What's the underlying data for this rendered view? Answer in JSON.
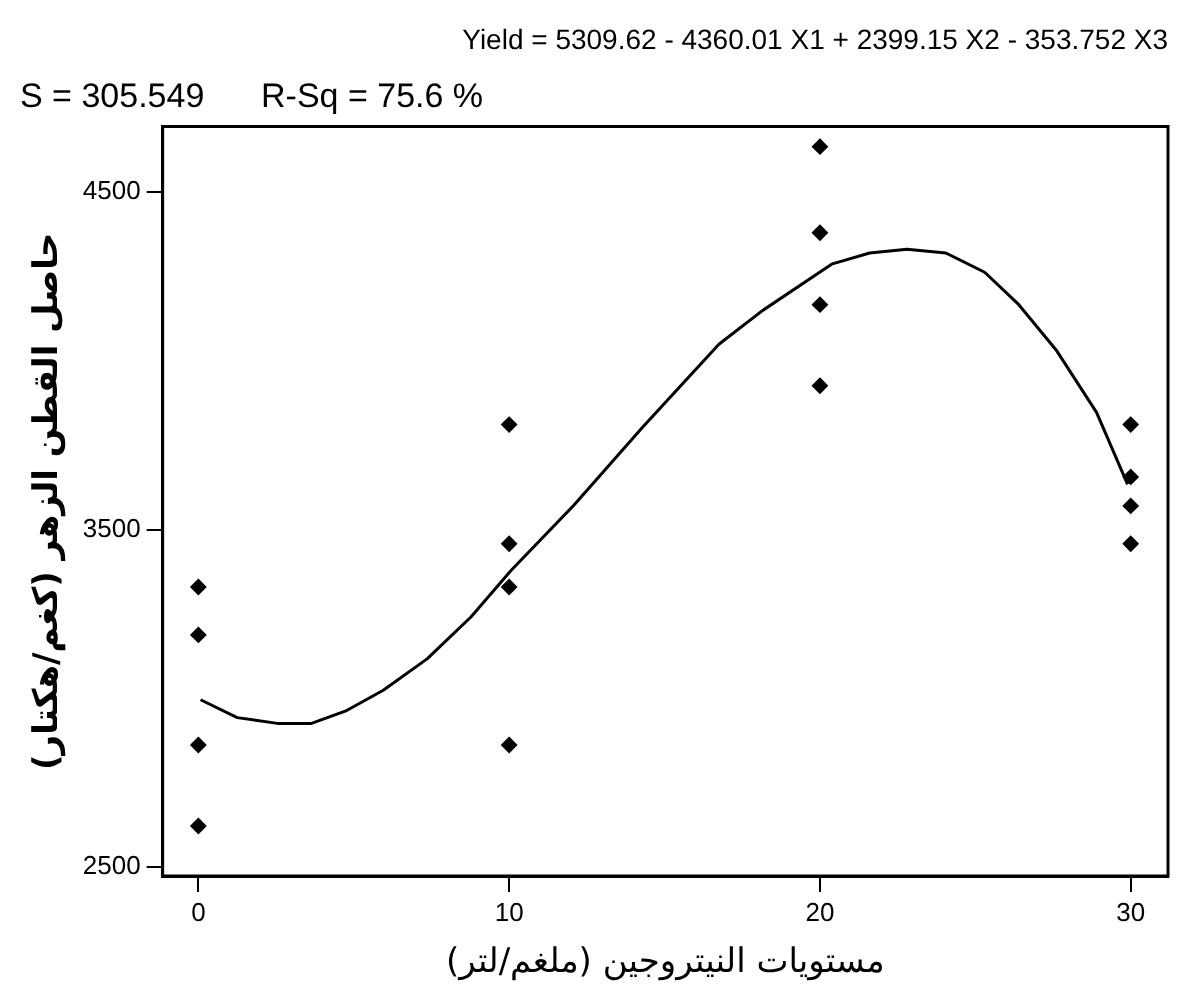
{
  "chart_data": {
    "type": "scatter",
    "title": "Yield = 5309.62 - 4360.01 X1 + 2399.15 X2 - 353.752 X3",
    "subtitle": "S = 305.549      R-Sq = 75.6 %",
    "xlabel": "مستويات النيتروجين (ملغم/لتر)",
    "ylabel": "حاصل القطن الزهر (كغم/هكتار)",
    "xlim": [
      -1.15,
      31.2
    ],
    "ylim": [
      2474,
      4694
    ],
    "xticks": [
      0,
      10,
      20,
      30
    ],
    "yticks": [
      2500,
      3500,
      4500
    ],
    "grid": false,
    "legend": false,
    "marker": "diamond",
    "series": [
      {
        "color": "#000000",
        "x": [
          0,
          0,
          0,
          0,
          10,
          10,
          10,
          10,
          20,
          20,
          20,
          20,
          30,
          30,
          30,
          30
        ],
        "values": [
          3330,
          3188,
          2862,
          2622,
          3811,
          3458,
          3330,
          2862,
          4634,
          4379,
          4166,
          3926,
          3811,
          3656,
          3570,
          3458
        ]
      },
      {
        "type": "line",
        "color": "#000000",
        "marker": "none",
        "x": [
          0.07,
          1.25,
          2.54,
          3.64,
          4.77,
          5.95,
          7.36,
          8.77,
          10.06,
          12.06,
          14.3,
          16.75,
          18.16,
          20.4,
          21.6,
          22.8,
          24.05,
          25.3,
          26.4,
          27.6,
          28.9,
          29.9
        ],
        "values": [
          2996,
          2943,
          2926,
          2926,
          2964,
          3024,
          3117,
          3241,
          3379,
          3570,
          3804,
          4049,
          4149,
          4287,
          4319,
          4330,
          4319,
          4262,
          4166,
          4032,
          3847,
          3634
        ]
      }
    ]
  }
}
